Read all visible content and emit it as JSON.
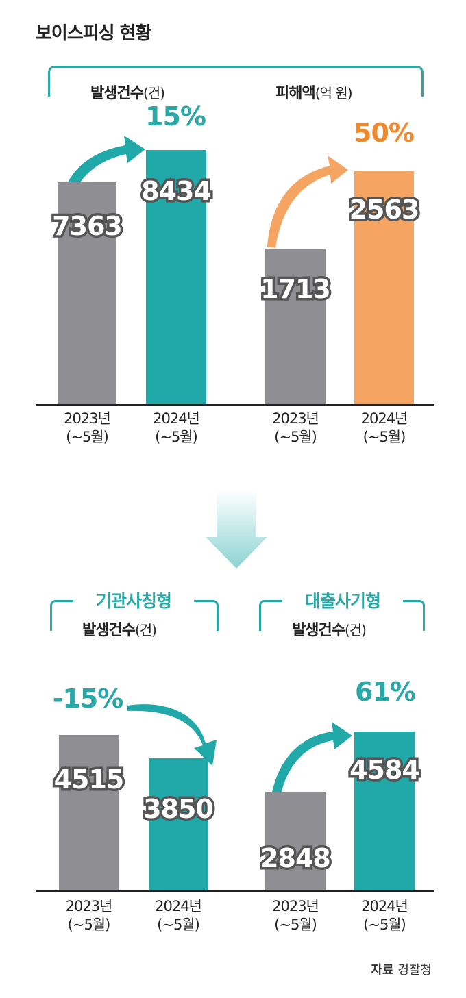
{
  "title": "보이스피싱 현황",
  "colors": {
    "teal": "#21a9a9",
    "gray": "#8f8f93",
    "orange": "#f5a461",
    "teal_text": "#2aa7a7",
    "orange_text": "#f08a2c"
  },
  "top": {
    "count_header": {
      "bold": "발생건수",
      "unit": "(건)"
    },
    "damage_header": {
      "bold": "피해액",
      "unit": "(억 원)"
    }
  },
  "bottom": {
    "agency_title": "기관사칭형",
    "agency_header": {
      "bold": "발생건수",
      "unit": "(건)"
    },
    "loan_title": "대출사기형",
    "loan_header": {
      "bold": "발생건수",
      "unit": "(건)"
    }
  },
  "xlabels": {
    "y2023": "2023년",
    "y2024": "2024년",
    "period": "(~5월)"
  },
  "source": {
    "label": "자료",
    "name": "경찰청"
  },
  "chart_data": [
    {
      "type": "bar",
      "title": "발생건수",
      "unit": "(건)",
      "categories": [
        "2023년 (~5월)",
        "2024년 (~5월)"
      ],
      "values": [
        7363,
        8434
      ],
      "change": "15%",
      "colors": [
        "#8f8f93",
        "#21a9a9"
      ]
    },
    {
      "type": "bar",
      "title": "피해액",
      "unit": "(억 원)",
      "categories": [
        "2023년 (~5월)",
        "2024년 (~5월)"
      ],
      "values": [
        1713,
        2563
      ],
      "change": "50%",
      "colors": [
        "#8f8f93",
        "#f5a461"
      ]
    },
    {
      "type": "bar",
      "title": "기관사칭형 발생건수",
      "unit": "(건)",
      "categories": [
        "2023년 (~5월)",
        "2024년 (~5월)"
      ],
      "values": [
        4515,
        3850
      ],
      "change": "-15%",
      "colors": [
        "#8f8f93",
        "#21a9a9"
      ]
    },
    {
      "type": "bar",
      "title": "대출사기형 발생건수",
      "unit": "(건)",
      "categories": [
        "2023년 (~5월)",
        "2024년 (~5월)"
      ],
      "values": [
        2848,
        4584
      ],
      "change": "61%",
      "colors": [
        "#8f8f93",
        "#21a9a9"
      ]
    }
  ]
}
